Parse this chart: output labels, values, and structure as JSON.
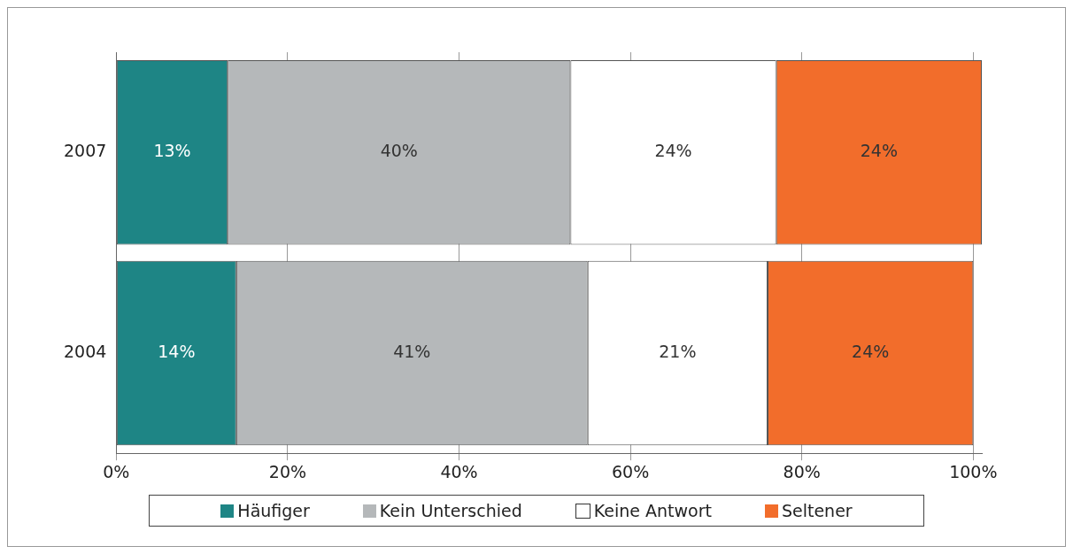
{
  "chart_data": {
    "type": "bar",
    "orientation": "horizontal",
    "stacked": true,
    "categories": [
      "2007",
      "2004"
    ],
    "series": [
      {
        "name": "Häufiger",
        "color": "#1e8585",
        "values": [
          13,
          14
        ]
      },
      {
        "name": "Kein Unterschied",
        "color": "#b5b8ba",
        "values": [
          40,
          41
        ]
      },
      {
        "name": "Keine Antwort",
        "color": "#ffffff",
        "values": [
          24,
          21
        ]
      },
      {
        "name": "Seltener",
        "color": "#f26d2b",
        "values": [
          24,
          24
        ]
      }
    ],
    "value_labels": [
      [
        "13%",
        "14%"
      ],
      [
        "40%",
        "41%"
      ],
      [
        "24%",
        "21%"
      ],
      [
        "24%",
        "24%"
      ]
    ],
    "xlim": [
      0,
      101
    ],
    "xticks": [
      {
        "value": 0,
        "label": "0%"
      },
      {
        "value": 20,
        "label": "20%"
      },
      {
        "value": 40,
        "label": "40%"
      },
      {
        "value": 60,
        "label": "60%"
      },
      {
        "value": 80,
        "label": "80%"
      },
      {
        "value": 100,
        "label": "100%"
      }
    ],
    "grid": "x",
    "legend": "bottom"
  }
}
